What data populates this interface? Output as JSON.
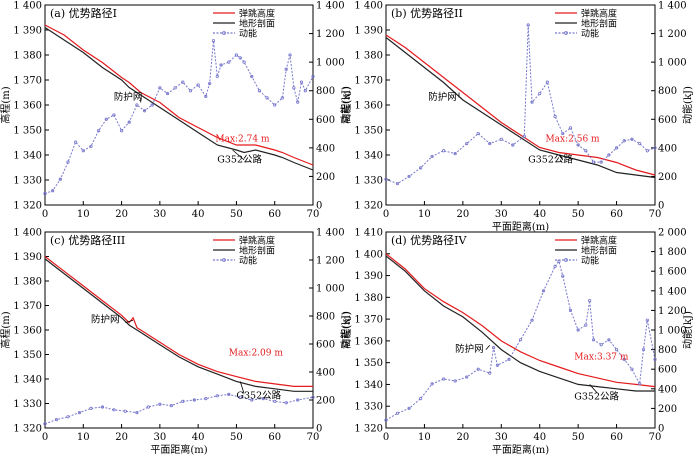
{
  "chart_data": [
    {
      "type": "line",
      "panel_label": "(a) 优势路径I",
      "xlabel": "",
      "ylabel_left": "高程(m)",
      "ylabel_right": "动能(kJ)",
      "xlim": [
        0,
        70
      ],
      "xticks": [
        0,
        10,
        20,
        30,
        40,
        50,
        60,
        70
      ],
      "ylim_left": [
        1320,
        1400
      ],
      "yticks_left": [
        1320,
        1330,
        1340,
        1350,
        1360,
        1370,
        1380,
        1390,
        1400
      ],
      "yticklabels_left": [
        "1 320",
        "1 330",
        "1 340",
        "1 350",
        "1 360",
        "1 370",
        "1 380",
        "1 390",
        "1 400"
      ],
      "ylim_right": [
        0,
        1400
      ],
      "yticks_right": [
        0,
        200,
        400,
        600,
        800,
        1000,
        1200,
        1400
      ],
      "yticklabels_right": [
        "0",
        "200",
        "400",
        "600",
        "800",
        "1 000",
        "1 200",
        "1 400"
      ],
      "legend": [
        "弹跳高度",
        "地形剖面",
        "动能"
      ],
      "annotations": {
        "net": "防护网",
        "max": "Max:2.74 m",
        "road": "G352公路"
      },
      "series": [
        {
          "name": "弹跳高度",
          "color": "#e41a1c",
          "x": [
            0,
            5,
            10,
            15,
            20,
            22,
            25,
            30,
            35,
            40,
            45,
            50,
            52,
            55,
            60,
            62,
            65,
            70
          ],
          "y": [
            1392,
            1388,
            1382,
            1377,
            1371,
            1369,
            1365,
            1361,
            1355,
            1351,
            1347,
            1344,
            1344,
            1344,
            1342,
            1341,
            1339,
            1336
          ]
        },
        {
          "name": "地形剖面",
          "color": "#222222",
          "x": [
            0,
            5,
            10,
            15,
            20,
            22,
            25,
            30,
            35,
            40,
            45,
            50,
            52,
            55,
            60,
            62,
            65,
            70
          ],
          "y": [
            1391,
            1386,
            1381,
            1375,
            1370,
            1367,
            1364,
            1359,
            1354,
            1349,
            1344,
            1342,
            1341,
            1342,
            1340,
            1339,
            1337,
            1334
          ]
        },
        {
          "name": "动能",
          "color": "#7777cc",
          "x": [
            0,
            2,
            4,
            6,
            8,
            10,
            12,
            14,
            16,
            18,
            20,
            22,
            24,
            26,
            28,
            30,
            32,
            34,
            36,
            38,
            40,
            42,
            43,
            44,
            45,
            46,
            48,
            50,
            51,
            52,
            54,
            56,
            58,
            60,
            62,
            63,
            64,
            65,
            66,
            67,
            68,
            70
          ],
          "y": [
            80,
            100,
            180,
            300,
            440,
            380,
            410,
            520,
            600,
            630,
            520,
            580,
            700,
            660,
            700,
            820,
            780,
            820,
            860,
            800,
            840,
            760,
            850,
            1150,
            900,
            980,
            1000,
            1050,
            1030,
            1000,
            900,
            800,
            750,
            700,
            750,
            950,
            1050,
            820,
            720,
            860,
            800,
            900
          ]
        }
      ]
    },
    {
      "type": "line",
      "panel_label": "(b) 优势路径II",
      "xlabel": "平面距离(m)",
      "ylabel_left": "高程(m)",
      "ylabel_right": "动能(kJ)",
      "xlim": [
        0,
        70
      ],
      "xticks": [
        0,
        10,
        20,
        30,
        40,
        50,
        60,
        70
      ],
      "ylim_left": [
        1320,
        1400
      ],
      "yticks_left": [
        1320,
        1330,
        1340,
        1350,
        1360,
        1370,
        1380,
        1390,
        1400
      ],
      "yticklabels_left": [
        "1 320",
        "1 330",
        "1 340",
        "1 350",
        "1 360",
        "1 370",
        "1 380",
        "1 390",
        "1 400"
      ],
      "ylim_right": [
        0,
        1400
      ],
      "yticks_right": [
        0,
        200,
        400,
        600,
        800,
        1000,
        1200,
        1400
      ],
      "yticklabels_right": [
        "0",
        "200",
        "400",
        "600",
        "800",
        "1 000",
        "1 200",
        "1 400"
      ],
      "legend": [
        "弹跳高度",
        "地形剖面",
        "动能"
      ],
      "annotations": {
        "net": "防护网",
        "max": "Max:2.56 m",
        "road": "G352公路"
      },
      "series": [
        {
          "name": "弹跳高度",
          "color": "#e41a1c",
          "x": [
            0,
            5,
            10,
            15,
            20,
            25,
            30,
            35,
            40,
            45,
            50,
            55,
            60,
            65,
            70
          ],
          "y": [
            1388,
            1383,
            1377,
            1371,
            1365,
            1359,
            1353,
            1348,
            1343,
            1341,
            1340,
            1339,
            1337,
            1334,
            1332
          ]
        },
        {
          "name": "地形剖面",
          "color": "#222222",
          "x": [
            0,
            5,
            10,
            15,
            20,
            25,
            30,
            35,
            40,
            45,
            50,
            55,
            60,
            65,
            70
          ],
          "y": [
            1387,
            1381,
            1375,
            1369,
            1362,
            1357,
            1352,
            1347,
            1342,
            1340,
            1338,
            1336,
            1333,
            1332,
            1331
          ]
        },
        {
          "name": "动能",
          "color": "#7777cc",
          "x": [
            0,
            3,
            6,
            9,
            12,
            15,
            18,
            21,
            24,
            27,
            30,
            33,
            36,
            37,
            38,
            40,
            42,
            44,
            46,
            48,
            50,
            52,
            54,
            56,
            58,
            60,
            62,
            64,
            66,
            68,
            70
          ],
          "y": [
            180,
            150,
            200,
            260,
            340,
            380,
            360,
            430,
            500,
            430,
            460,
            420,
            480,
            1260,
            720,
            780,
            860,
            620,
            500,
            540,
            420,
            380,
            300,
            300,
            350,
            400,
            450,
            460,
            430,
            380,
            400
          ]
        }
      ]
    },
    {
      "type": "line",
      "panel_label": "(c) 优势路径III",
      "xlabel": "平面距离(m)",
      "ylabel_left": "高程(m)",
      "ylabel_right": "动能(kJ)",
      "xlim": [
        0,
        70
      ],
      "xticks": [
        0,
        10,
        20,
        30,
        40,
        50,
        60,
        70
      ],
      "ylim_left": [
        1320,
        1400
      ],
      "yticks_left": [
        1320,
        1330,
        1340,
        1350,
        1360,
        1370,
        1380,
        1390,
        1400
      ],
      "yticklabels_left": [
        "1 320",
        "1 330",
        "1 340",
        "1 350",
        "1 360",
        "1 370",
        "1 380",
        "1 390",
        "1 400"
      ],
      "ylim_right": [
        0,
        1400
      ],
      "yticks_right": [
        0,
        200,
        400,
        600,
        800,
        1000,
        1200,
        1400
      ],
      "yticklabels_right": [
        "0",
        "200",
        "400",
        "600",
        "800",
        "1 000",
        "1 200",
        "1 400"
      ],
      "legend": [
        "弹跳高度",
        "地形剖面",
        "动能"
      ],
      "annotations": {
        "net": "防护网",
        "max": "Max:2.09 m",
        "road": "G352公路"
      },
      "series": [
        {
          "name": "弹跳高度",
          "color": "#e41a1c",
          "x": [
            0,
            5,
            10,
            15,
            20,
            22,
            23,
            24,
            25,
            30,
            35,
            40,
            45,
            50,
            55,
            60,
            65,
            70
          ],
          "y": [
            1390,
            1384,
            1378,
            1372,
            1366,
            1363,
            1365,
            1361,
            1360,
            1355,
            1350,
            1346,
            1343,
            1341,
            1339,
            1338,
            1337,
            1337
          ]
        },
        {
          "name": "地形剖面",
          "color": "#222222",
          "x": [
            0,
            5,
            10,
            15,
            20,
            22,
            25,
            30,
            35,
            40,
            45,
            50,
            55,
            60,
            65,
            70
          ],
          "y": [
            1389,
            1383,
            1377,
            1371,
            1365,
            1362,
            1359,
            1354,
            1349,
            1345,
            1342,
            1339,
            1337,
            1336,
            1335,
            1335
          ]
        },
        {
          "name": "动能",
          "color": "#7777cc",
          "x": [
            0,
            3,
            6,
            9,
            12,
            15,
            18,
            21,
            24,
            27,
            30,
            33,
            36,
            39,
            42,
            45,
            48,
            51,
            54,
            57,
            60,
            63,
            66,
            70
          ],
          "y": [
            30,
            60,
            80,
            110,
            140,
            150,
            130,
            120,
            110,
            150,
            170,
            160,
            190,
            200,
            210,
            230,
            240,
            220,
            200,
            210,
            190,
            180,
            200,
            220
          ]
        }
      ]
    },
    {
      "type": "line",
      "panel_label": "(d) 优势路径IV",
      "xlabel": "平面距离(m)",
      "ylabel_left": "高程(m)",
      "ylabel_right": "动能(kJ)",
      "xlim": [
        0,
        70
      ],
      "xticks": [
        0,
        10,
        20,
        30,
        40,
        50,
        60,
        70
      ],
      "ylim_left": [
        1320,
        1410
      ],
      "yticks_left": [
        1320,
        1330,
        1340,
        1350,
        1360,
        1370,
        1380,
        1390,
        1400,
        1410
      ],
      "yticklabels_left": [
        "1 320",
        "1 330",
        "1 340",
        "1 350",
        "1 360",
        "1 370",
        "1 380",
        "1 390",
        "1 400",
        "1 410"
      ],
      "ylim_right": [
        0,
        2000
      ],
      "yticks_right": [
        0,
        200,
        400,
        600,
        800,
        1000,
        1200,
        1400,
        1600,
        1800,
        2000
      ],
      "yticklabels_right": [
        "0",
        "200",
        "400",
        "600",
        "800",
        "1 000",
        "1 200",
        "1 400",
        "1 600",
        "1 800",
        "2 000"
      ],
      "legend": [
        "弹跳高度",
        "地形剖面",
        "动能"
      ],
      "annotations": {
        "net": "防护网",
        "max": "Max:3.37 m",
        "road": "G352公路"
      },
      "series": [
        {
          "name": "弹跳高度",
          "color": "#e41a1c",
          "x": [
            0,
            5,
            10,
            15,
            20,
            25,
            30,
            35,
            40,
            45,
            50,
            55,
            60,
            65,
            70
          ],
          "y": [
            1400,
            1393,
            1384,
            1378,
            1373,
            1367,
            1360,
            1355,
            1351,
            1348,
            1345,
            1343,
            1341,
            1340,
            1339
          ]
        },
        {
          "name": "地形剖面",
          "color": "#222222",
          "x": [
            0,
            5,
            10,
            15,
            20,
            25,
            30,
            35,
            40,
            45,
            50,
            55,
            60,
            65,
            70
          ],
          "y": [
            1399,
            1392,
            1383,
            1376,
            1371,
            1364,
            1356,
            1350,
            1346,
            1343,
            1340,
            1339,
            1338,
            1337,
            1337
          ]
        },
        {
          "name": "动能",
          "color": "#7777cc",
          "x": [
            0,
            3,
            6,
            9,
            12,
            15,
            18,
            21,
            24,
            27,
            28,
            29,
            32,
            35,
            38,
            41,
            44,
            45,
            46,
            48,
            50,
            52,
            53,
            54,
            56,
            58,
            60,
            62,
            64,
            66,
            67,
            68,
            70
          ],
          "y": [
            80,
            150,
            200,
            300,
            450,
            500,
            480,
            520,
            600,
            560,
            820,
            640,
            700,
            900,
            1100,
            1400,
            1650,
            1700,
            1550,
            1200,
            1000,
            1050,
            1300,
            900,
            850,
            900,
            800,
            700,
            600,
            450,
            800,
            1100,
            700
          ]
        }
      ]
    }
  ]
}
